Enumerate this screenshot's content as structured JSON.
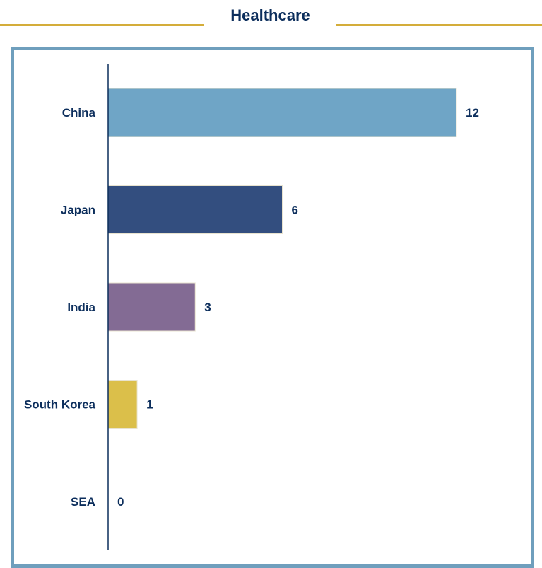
{
  "chart_data": {
    "type": "bar",
    "orientation": "horizontal",
    "title": "Healthcare",
    "categories": [
      "China",
      "Japan",
      "India",
      "South Korea",
      "SEA"
    ],
    "values": [
      12,
      6,
      3,
      1,
      0
    ],
    "colors": [
      "#6fa5c6",
      "#334e7f",
      "#836b94",
      "#dbbf4a",
      "#dbbf4a"
    ],
    "xlim": [
      0,
      12
    ],
    "xlabel": "",
    "ylabel": "",
    "grid": false,
    "legend": "none"
  },
  "theme": {
    "title_color": "#0c2e5c",
    "rule_color": "#d4ad3a",
    "frame_color": "#6f9fbd",
    "axis_color": "#0c2e5c"
  }
}
